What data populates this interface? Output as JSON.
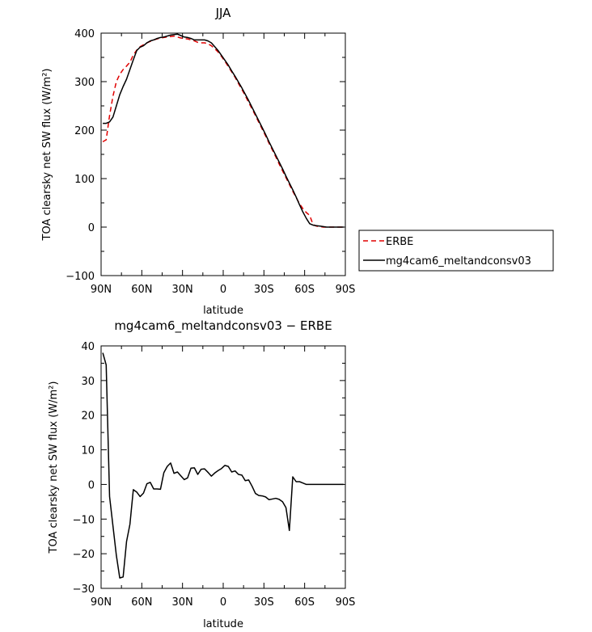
{
  "chart_data": [
    {
      "type": "line",
      "title": "JJA",
      "xlabel": "latitude",
      "ylabel": "TOA clearsky net SW flux (W/m²)",
      "xticks": [
        "90N",
        "60N",
        "30N",
        "0",
        "30S",
        "60S",
        "90S"
      ],
      "xlim": [
        90,
        -90
      ],
      "ylim": [
        -100,
        400
      ],
      "yticks": [
        -100,
        0,
        100,
        200,
        300,
        400
      ],
      "legend": "right",
      "series": [
        {
          "name": "ERBE",
          "color": "#e00000",
          "dash": "dashed",
          "x": [
            88.75,
            86.25,
            83.75,
            81.25,
            78.75,
            76.25,
            73.75,
            71.25,
            68.75,
            66.25,
            63.75,
            61.25,
            58.75,
            56.25,
            53.75,
            51.25,
            48.75,
            46.25,
            43.75,
            41.25,
            38.75,
            36.25,
            33.75,
            31.25,
            28.75,
            26.25,
            23.75,
            21.25,
            18.75,
            16.25,
            13.75,
            11.25,
            8.75,
            6.25,
            3.75,
            1.25,
            -1.25,
            -3.75,
            -6.25,
            -8.75,
            -11.25,
            -13.75,
            -16.25,
            -18.75,
            -21.25,
            -23.75,
            -26.25,
            -28.75,
            -31.25,
            -33.75,
            -36.25,
            -38.75,
            -41.25,
            -43.75,
            -46.25,
            -48.75,
            -51.25,
            -53.75,
            -56.25,
            -58.75,
            -61.25,
            -63.75,
            -66.25,
            -68.75,
            -71.25,
            -73.75,
            -76.25,
            -78.75,
            -81.25,
            -83.75,
            -86.25,
            -88.75
          ],
          "y": [
            176,
            180,
            230,
            270,
            300,
            315,
            325,
            332,
            340,
            355,
            365,
            372,
            376,
            380,
            383,
            386,
            388,
            390,
            391,
            392,
            393,
            394,
            392,
            390,
            389,
            388,
            386,
            384,
            381,
            380,
            380,
            378,
            374,
            368,
            361,
            352,
            342,
            331,
            320,
            309,
            296,
            284,
            271,
            257,
            244,
            230,
            216,
            202,
            188,
            173,
            159,
            145,
            130,
            116,
            102,
            88,
            74,
            61,
            48,
            38,
            30,
            24,
            5,
            2,
            1,
            0,
            0,
            0,
            0,
            0,
            0,
            0
          ]
        },
        {
          "name": "mg4cam6_meltandconsv03",
          "color": "#000000",
          "dash": "solid",
          "x": [
            88.75,
            86.25,
            83.75,
            81.25,
            78.75,
            76.25,
            73.75,
            71.25,
            68.75,
            66.25,
            63.75,
            61.25,
            58.75,
            56.25,
            53.75,
            51.25,
            48.75,
            46.25,
            43.75,
            41.25,
            38.75,
            36.25,
            33.75,
            31.25,
            28.75,
            26.25,
            23.75,
            21.25,
            18.75,
            16.25,
            13.75,
            11.25,
            8.75,
            6.25,
            3.75,
            1.25,
            -1.25,
            -3.75,
            -6.25,
            -8.75,
            -11.25,
            -13.75,
            -16.25,
            -18.75,
            -21.25,
            -23.75,
            -26.25,
            -28.75,
            -31.25,
            -33.75,
            -36.25,
            -38.75,
            -41.25,
            -43.75,
            -46.25,
            -48.75,
            -51.25,
            -53.75,
            -56.25,
            -58.75,
            -61.25,
            -63.75,
            -66.25,
            -68.75,
            -71.25,
            -73.75,
            -76.25,
            -78.75,
            -81.25,
            -83.75,
            -86.25,
            -88.75
          ],
          "y": [
            214,
            214,
            217,
            227,
            250,
            273,
            290,
            305,
            325,
            345,
            364,
            371,
            374,
            380,
            384,
            386,
            389,
            391,
            392,
            394,
            396,
            397,
            398,
            395,
            392,
            391,
            389,
            386,
            386,
            386,
            386,
            384,
            380,
            372,
            364,
            354,
            344,
            334,
            322,
            311,
            299,
            287,
            274,
            261,
            247,
            233,
            219,
            205,
            191,
            176,
            162,
            148,
            134,
            120,
            105,
            91,
            77,
            62,
            46,
            31,
            18,
            7,
            4,
            3,
            2,
            1,
            0,
            0,
            0,
            0,
            0,
            0
          ]
        }
      ]
    },
    {
      "type": "line",
      "title": "mg4cam6_meltandconsv03 − ERBE",
      "xlabel": "latitude",
      "ylabel": "TOA clearsky net SW flux (W/m²)",
      "xticks": [
        "90N",
        "60N",
        "30N",
        "0",
        "30S",
        "60S",
        "90S"
      ],
      "xlim": [
        90,
        -90
      ],
      "ylim": [
        -30,
        40
      ],
      "yticks": [
        -30,
        -20,
        -10,
        0,
        10,
        20,
        30,
        40
      ],
      "series": [
        {
          "color": "#000000",
          "dash": "solid",
          "x": [
            88.75,
            86.25,
            83.75,
            81.25,
            78.75,
            76.25,
            73.75,
            71.25,
            68.75,
            66.25,
            63.75,
            61.25,
            58.75,
            56.25,
            53.75,
            51.25,
            48.75,
            46.25,
            43.75,
            41.25,
            38.75,
            36.25,
            33.75,
            31.25,
            28.75,
            26.25,
            23.75,
            21.25,
            18.75,
            16.25,
            13.75,
            11.25,
            8.75,
            6.25,
            3.75,
            1.25,
            -1.25,
            -3.75,
            -6.25,
            -8.75,
            -11.25,
            -13.75,
            -16.25,
            -18.75,
            -21.25,
            -23.75,
            -26.25,
            -28.75,
            -31.25,
            -33.75,
            -36.25,
            -38.75,
            -41.25,
            -43.75,
            -46.25,
            -48.75,
            -51.25,
            -53.75,
            -56.25,
            -58.75,
            -61.25,
            -63.75,
            -66.25,
            -68.75,
            -71.25,
            -73.75,
            -76.25,
            -78.75,
            -81.25,
            -83.75,
            -86.25,
            -88.75
          ],
          "y": [
            38,
            34.5,
            -3.5,
            -12,
            -20.5,
            -27,
            -26.7,
            -16.5,
            -11.5,
            -1.5,
            -2.2,
            -3.5,
            -2.5,
            0.2,
            0.6,
            -1.3,
            -1.3,
            -1.4,
            3.4,
            5.2,
            6.2,
            3.2,
            3.6,
            2.5,
            1.4,
            1.9,
            4.7,
            4.8,
            2.9,
            4.4,
            4.5,
            3.5,
            2.4,
            3.3,
            4.0,
            4.6,
            5.5,
            5.2,
            3.6,
            3.9,
            2.9,
            2.7,
            1.1,
            1.3,
            -0.5,
            -2.6,
            -3.2,
            -3.3,
            -3.6,
            -4.4,
            -4.2,
            -4.0,
            -4.3,
            -5.0,
            -6.7,
            -13.3,
            2.2,
            0.8,
            0.8,
            0.4,
            0.0,
            0.0,
            0.0,
            0.0,
            0.0,
            0.0,
            0.0,
            0.0,
            0.0,
            0.0,
            0.0,
            0.0
          ]
        }
      ]
    }
  ]
}
